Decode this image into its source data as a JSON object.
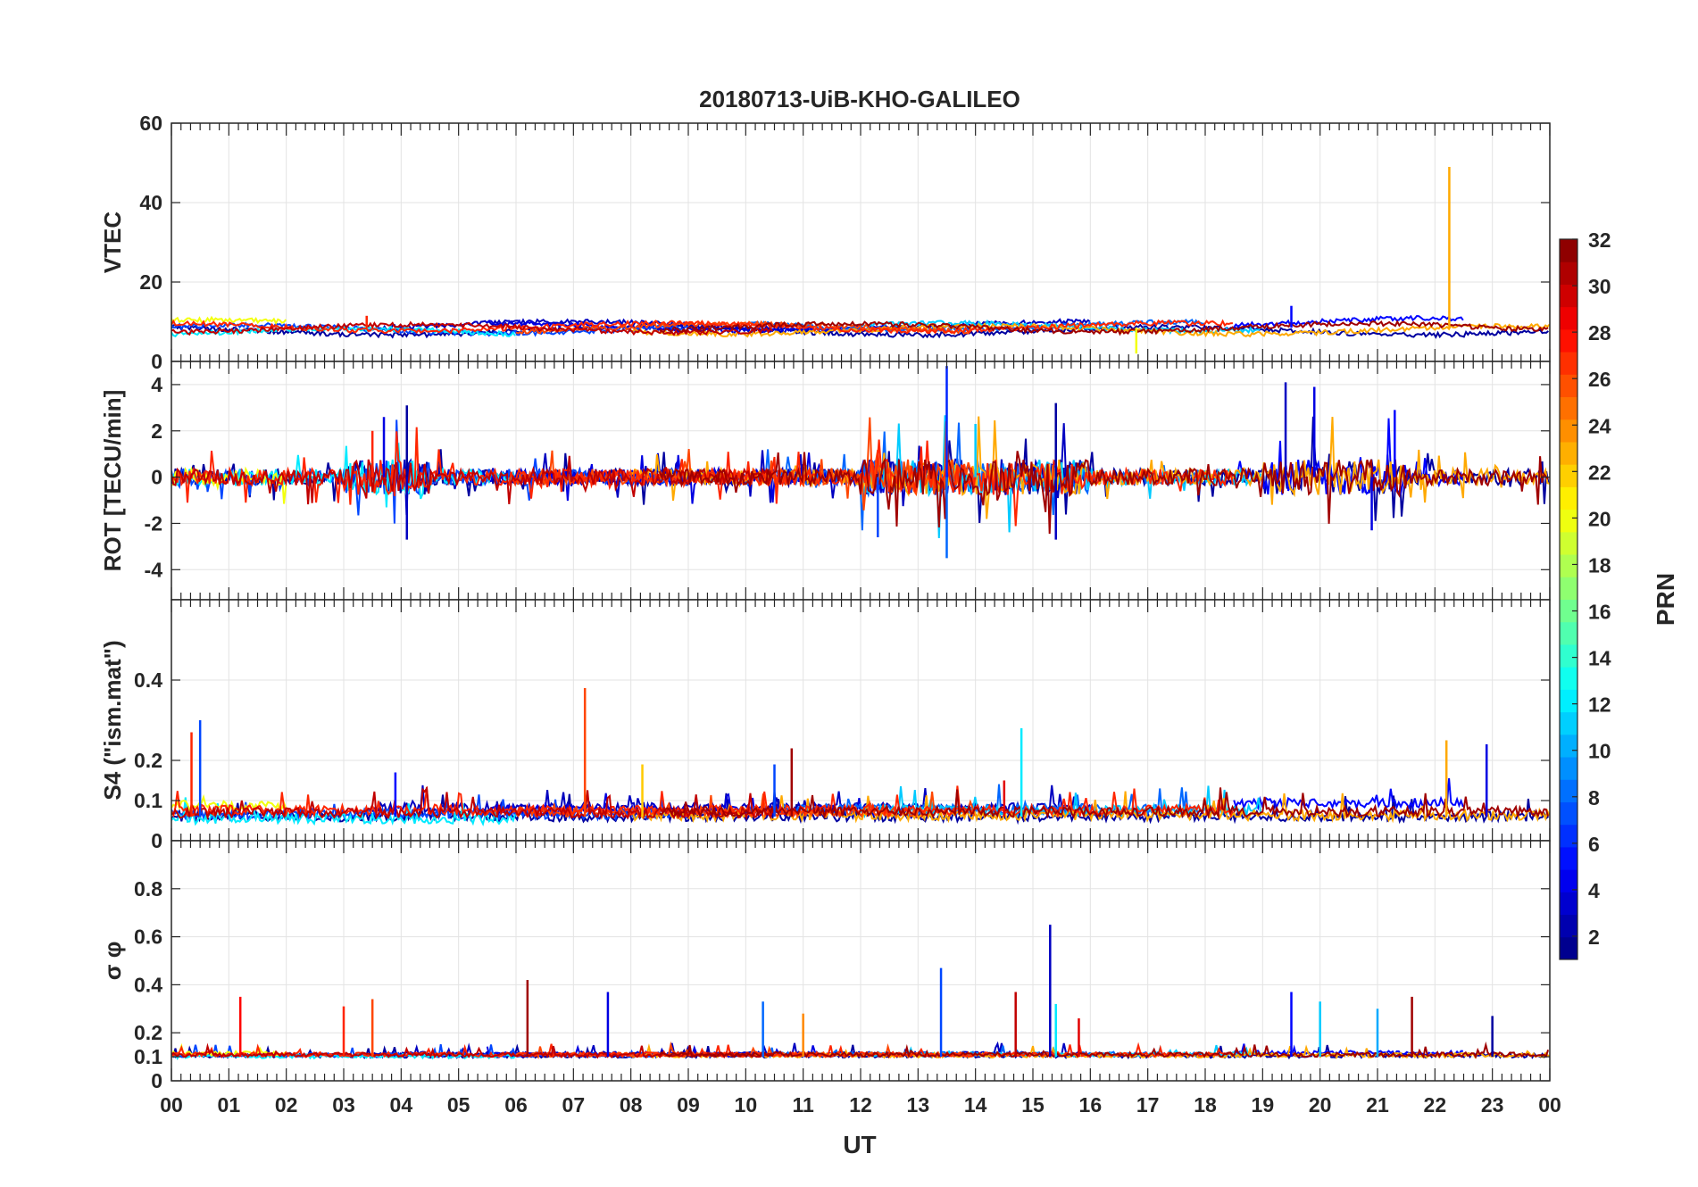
{
  "chart_data": {
    "type": "line",
    "title": "20180713-UiB-KHO-GALILEO",
    "xlabel": "UT",
    "x_tick_labels": [
      "00",
      "01",
      "02",
      "03",
      "04",
      "05",
      "06",
      "07",
      "08",
      "09",
      "10",
      "11",
      "12",
      "13",
      "14",
      "15",
      "16",
      "17",
      "18",
      "19",
      "20",
      "21",
      "22",
      "23",
      "00"
    ],
    "xlim_hours": [
      0,
      24
    ],
    "grid": true,
    "panels": [
      {
        "id": "vtec",
        "ylabel": "VTEC",
        "ylim": [
          0,
          60
        ],
        "yticks": [
          0,
          20,
          40,
          60
        ],
        "ytick_labels": [
          "0",
          "20",
          "40",
          "60"
        ],
        "baseline": 8.5,
        "noise": 0.6,
        "spikes": [
          {
            "prn": 23,
            "t": 22.25,
            "v": 49
          },
          {
            "prn": 5,
            "t": 19.5,
            "v": 14
          },
          {
            "prn": 27,
            "t": 3.4,
            "v": 11.5
          },
          {
            "prn": 20,
            "t": 16.8,
            "v": 2
          }
        ]
      },
      {
        "id": "rot",
        "ylabel": "ROT [TECU/min]",
        "ylim": [
          -5.3,
          5
        ],
        "yticks": [
          -4,
          -2,
          0,
          2,
          4
        ],
        "ytick_labels": [
          "-4",
          "-2",
          "0",
          "2",
          "4"
        ],
        "baseline": 0,
        "noise": 0.35,
        "spikes": [
          {
            "prn": 6,
            "t": 13.5,
            "v": 4.8
          },
          {
            "prn": 8,
            "t": 13.5,
            "v": -3.5
          },
          {
            "prn": 3,
            "t": 19.4,
            "v": 4.1
          },
          {
            "prn": 4,
            "t": 19.9,
            "v": 3.9
          },
          {
            "prn": 2,
            "t": 4.1,
            "v": 3.1
          },
          {
            "prn": 3,
            "t": 4.1,
            "v": -2.7
          },
          {
            "prn": 4,
            "t": 3.7,
            "v": 2.6
          },
          {
            "prn": 27,
            "t": 3.5,
            "v": 2.0
          },
          {
            "prn": 2,
            "t": 15.4,
            "v": 3.2
          },
          {
            "prn": 3,
            "t": 15.4,
            "v": -2.7
          },
          {
            "prn": 5,
            "t": 21.3,
            "v": 2.9
          },
          {
            "prn": 4,
            "t": 20.9,
            "v": -2.3
          },
          {
            "prn": 7,
            "t": 12.3,
            "v": -2.6
          },
          {
            "prn": 11,
            "t": 14.0,
            "v": 2.3
          }
        ]
      },
      {
        "id": "s4",
        "ylabel": "S4 (\"ism.mat\")",
        "ylim": [
          0,
          0.6
        ],
        "yticks": [
          0,
          0.1,
          0.2,
          0.4
        ],
        "ytick_labels": [
          "0",
          "0.1",
          "0.2",
          "0.4"
        ],
        "baseline": 0.06,
        "noise": 0.025,
        "spikes": [
          {
            "prn": 26,
            "t": 7.2,
            "v": 0.38
          },
          {
            "prn": 12,
            "t": 14.8,
            "v": 0.28
          },
          {
            "prn": 7,
            "t": 0.5,
            "v": 0.3
          },
          {
            "prn": 27,
            "t": 0.35,
            "v": 0.27
          },
          {
            "prn": 23,
            "t": 22.2,
            "v": 0.25
          },
          {
            "prn": 4,
            "t": 22.9,
            "v": 0.24
          },
          {
            "prn": 31,
            "t": 10.8,
            "v": 0.23
          },
          {
            "prn": 22,
            "t": 8.2,
            "v": 0.19
          },
          {
            "prn": 29,
            "t": 14.5,
            "v": 0.15
          },
          {
            "prn": 5,
            "t": 3.9,
            "v": 0.17
          },
          {
            "prn": 7,
            "t": 10.5,
            "v": 0.19
          }
        ]
      },
      {
        "id": "sigma",
        "ylabel": "σ φ",
        "ylim": [
          0,
          1
        ],
        "yticks": [
          0,
          0.1,
          0.2,
          0.4,
          0.6,
          0.8
        ],
        "ytick_labels": [
          "0",
          "0.1",
          "0.2",
          "0.4",
          "0.6",
          "0.8"
        ],
        "baseline": 0.1,
        "noise": 0.018,
        "spikes": [
          {
            "prn": 3,
            "t": 15.3,
            "v": 0.65
          },
          {
            "prn": 7,
            "t": 13.4,
            "v": 0.47
          },
          {
            "prn": 31,
            "t": 6.2,
            "v": 0.42
          },
          {
            "prn": 30,
            "t": 14.7,
            "v": 0.37
          },
          {
            "prn": 5,
            "t": 19.5,
            "v": 0.37
          },
          {
            "prn": 4,
            "t": 7.6,
            "v": 0.37
          },
          {
            "prn": 28,
            "t": 1.2,
            "v": 0.35
          },
          {
            "prn": 31,
            "t": 21.6,
            "v": 0.35
          },
          {
            "prn": 26,
            "t": 3.5,
            "v": 0.34
          },
          {
            "prn": 11,
            "t": 20.0,
            "v": 0.33
          },
          {
            "prn": 27,
            "t": 3.0,
            "v": 0.31
          },
          {
            "prn": 12,
            "t": 15.4,
            "v": 0.32
          },
          {
            "prn": 8,
            "t": 10.3,
            "v": 0.33
          },
          {
            "prn": 10,
            "t": 21.0,
            "v": 0.3
          },
          {
            "prn": 24,
            "t": 11.0,
            "v": 0.28
          },
          {
            "prn": 29,
            "t": 15.8,
            "v": 0.26
          },
          {
            "prn": 2,
            "t": 23.0,
            "v": 0.27
          }
        ]
      }
    ],
    "series": [
      {
        "prn": 2,
        "start": 0.0,
        "end": 24.0,
        "offset": -0.2
      },
      {
        "prn": 3,
        "start": 3.5,
        "end": 16.0,
        "offset": 0.15
      },
      {
        "prn": 4,
        "start": 5.5,
        "end": 12.5,
        "offset": 0.05
      },
      {
        "prn": 5,
        "start": 18.5,
        "end": 22.5,
        "offset": 0.35
      },
      {
        "prn": 7,
        "start": 0.0,
        "end": 9.0,
        "offset": -0.1
      },
      {
        "prn": 8,
        "start": 10.0,
        "end": 18.0,
        "offset": 0.1
      },
      {
        "prn": 11,
        "start": 12.0,
        "end": 19.0,
        "offset": 0.05
      },
      {
        "prn": 12,
        "start": 0.0,
        "end": 6.0,
        "offset": -0.3
      },
      {
        "prn": 20,
        "start": 0.0,
        "end": 2.0,
        "offset": 0.25
      },
      {
        "prn": 23,
        "start": 8.0,
        "end": 24.0,
        "offset": -0.15
      },
      {
        "prn": 26,
        "start": 6.0,
        "end": 14.0,
        "offset": 0.0
      },
      {
        "prn": 27,
        "start": 0.0,
        "end": 18.5,
        "offset": 0.05
      },
      {
        "prn": 30,
        "start": 0.0,
        "end": 10.5,
        "offset": -0.05
      },
      {
        "prn": 31,
        "start": 8.5,
        "end": 24.0,
        "offset": 0.0
      }
    ],
    "colorbar": {
      "label": "PRN",
      "range": [
        1,
        32
      ],
      "ticks": [
        2,
        4,
        6,
        8,
        10,
        12,
        14,
        16,
        18,
        20,
        22,
        24,
        26,
        28,
        30,
        32
      ],
      "tick_labels": [
        "2",
        "4",
        "6",
        "8",
        "10",
        "12",
        "14",
        "16",
        "18",
        "20",
        "22",
        "24",
        "26",
        "28",
        "30",
        "32"
      ],
      "colormap": "jet",
      "levels": 32
    }
  }
}
